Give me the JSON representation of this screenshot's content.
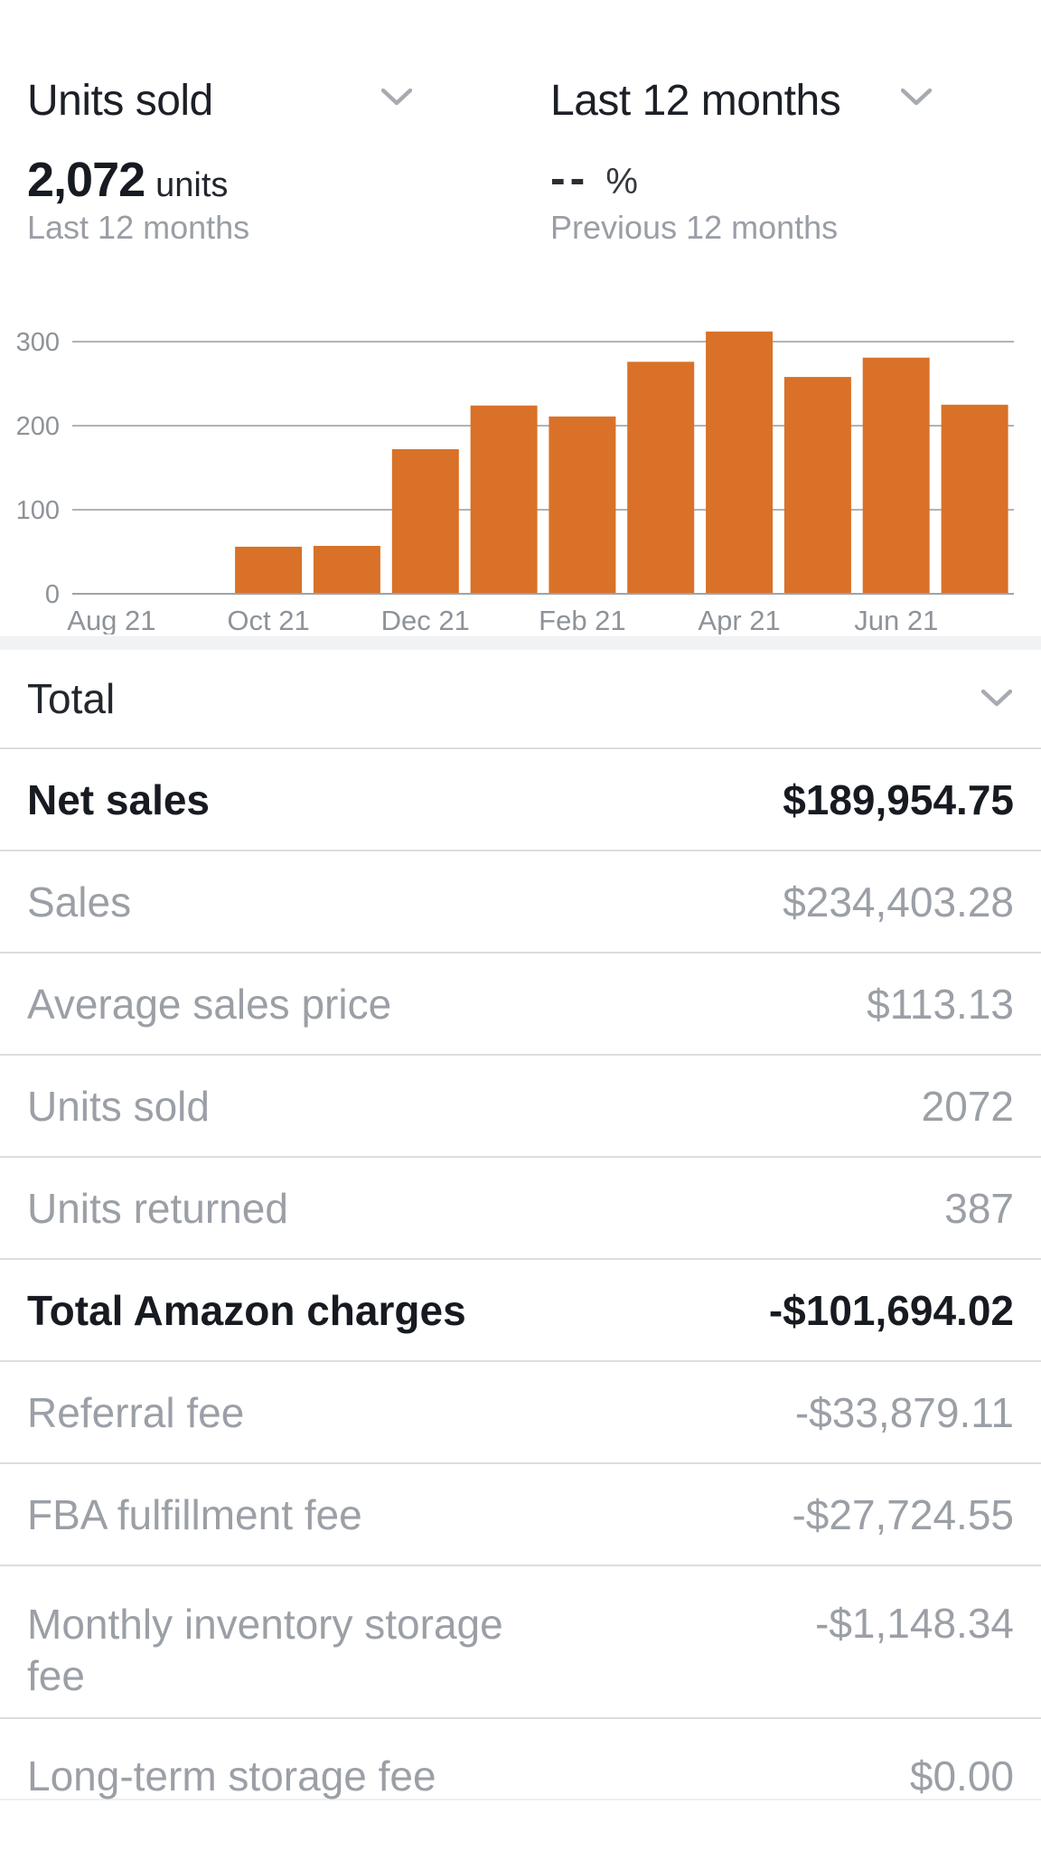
{
  "header": {
    "metric_selector": {
      "label": "Units sold"
    },
    "period_selector": {
      "label": "Last 12 months"
    },
    "metric": {
      "value": "2,072",
      "unit": "units",
      "period": "Last 12 months"
    },
    "comparison": {
      "value": "--",
      "unit": "%",
      "period": "Previous 12 months"
    }
  },
  "chart_data": {
    "type": "bar",
    "title": "Units sold - Last 12 months",
    "categories": [
      "Aug 21",
      "",
      "Oct 21",
      "",
      "Dec 21",
      "",
      "Feb 21",
      "",
      "Apr 21",
      "",
      "Jun 21",
      ""
    ],
    "values": [
      0,
      0,
      56,
      57,
      172,
      224,
      211,
      276,
      312,
      258,
      281,
      225
    ],
    "xlabel": "",
    "ylabel": "",
    "ylim": [
      0,
      300
    ],
    "yticks": [
      0,
      100,
      200,
      300
    ],
    "grid": "horizontal",
    "legend": "none",
    "bar_color": "#d97128"
  },
  "summary": {
    "section_label": "Total",
    "rows": [
      {
        "label": "Net sales",
        "value": "$189,954.75",
        "emphasis": true
      },
      {
        "label": "Sales",
        "value": "$234,403.28",
        "emphasis": false
      },
      {
        "label": "Average sales price",
        "value": "$113.13",
        "emphasis": false
      },
      {
        "label": "Units sold",
        "value": "2072",
        "emphasis": false
      },
      {
        "label": "Units returned",
        "value": "387",
        "emphasis": false
      },
      {
        "label": "Total Amazon charges",
        "value": "-$101,694.02",
        "emphasis": true
      },
      {
        "label": "Referral fee",
        "value": "-$33,879.11",
        "emphasis": false
      },
      {
        "label": "FBA fulfillment fee",
        "value": "-$27,724.55",
        "emphasis": false
      },
      {
        "label": "Monthly inventory storage fee",
        "value": "-$1,148.34",
        "emphasis": false
      },
      {
        "label": "Long-term storage fee",
        "value": "$0.00",
        "emphasis": false
      }
    ]
  },
  "colors": {
    "bar": "#d97128",
    "dark_text": "#1c2026",
    "gray_text": "#9b9fa6",
    "axis_text": "#8e9399",
    "gridline": "#aeb3b9",
    "axis_line": "#9da3a9",
    "divider": "#dbdde0",
    "divider_light": "#edeff1",
    "band": "#f1f2f4",
    "chevron": "#a7abb1"
  }
}
